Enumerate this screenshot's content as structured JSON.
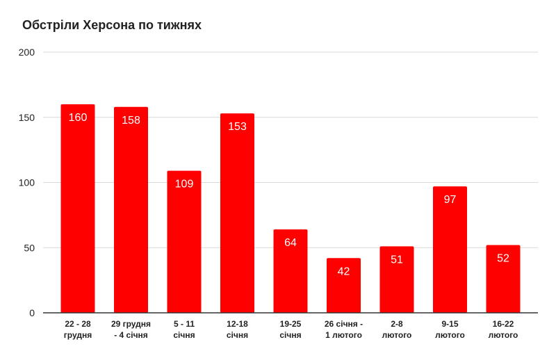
{
  "chart_data": {
    "type": "bar",
    "title": "Обстріли Херсона по тижнях",
    "categories": [
      [
        "22 - 28",
        "грудня"
      ],
      [
        "29 грудня",
        "- 4 січня"
      ],
      [
        "5 - 11",
        "січня"
      ],
      [
        "12-18",
        "січня"
      ],
      [
        "19-25",
        "січня"
      ],
      [
        "26 січня -",
        "1 лютого"
      ],
      [
        "2-8",
        "лютого"
      ],
      [
        "9-15",
        "лютого"
      ],
      [
        "16-22",
        "лютого"
      ]
    ],
    "values": [
      160,
      158,
      109,
      153,
      64,
      42,
      51,
      97,
      52
    ],
    "value_labels": [
      "160",
      "158",
      "109",
      "153",
      "64",
      "42",
      "51",
      "97",
      "52"
    ],
    "y_ticks": [
      0,
      50,
      100,
      150,
      200
    ],
    "y_tick_labels": [
      "0",
      "50",
      "100",
      "150",
      "200"
    ],
    "ylim": [
      0,
      200
    ],
    "grid": true,
    "legend": "none",
    "colors": {
      "bar": "#ff0000",
      "bar_label": "#ffffff",
      "grid": "#d9d9d9",
      "axis": "#333333",
      "text": "#222222"
    }
  }
}
